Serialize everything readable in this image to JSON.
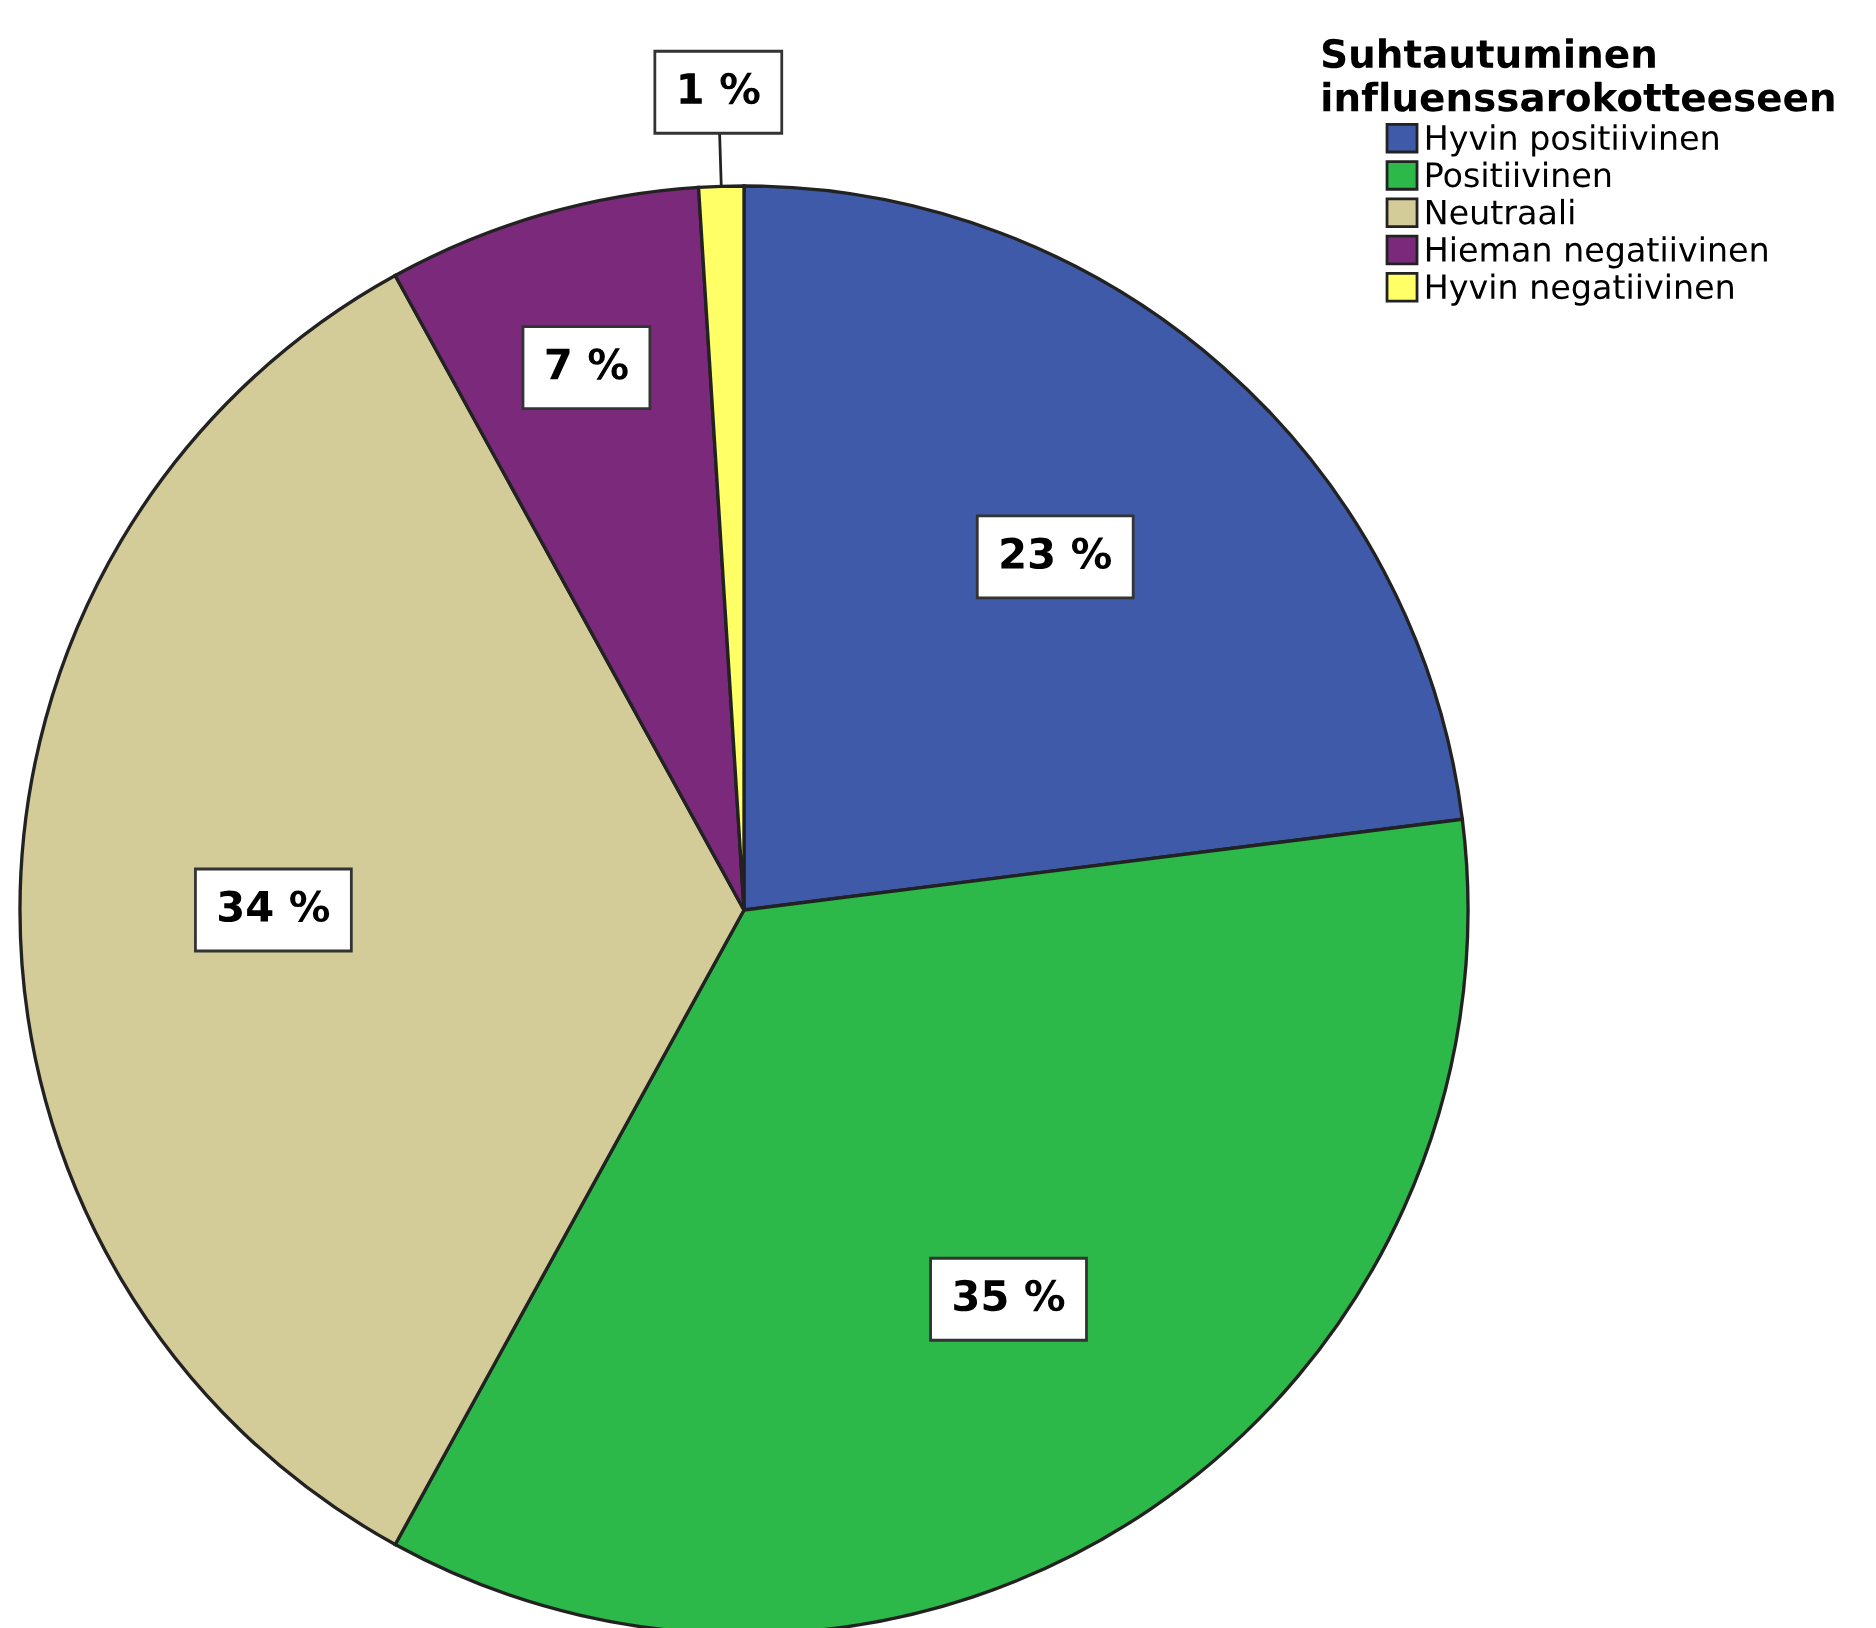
{
  "chart_data": {
    "type": "pie",
    "legend_title": "Suhtautuminen influenssarokotteeseen",
    "categories": [
      "Hyvin positiivinen",
      "Positiivinen",
      "Neutraali",
      "Hieman negatiivinen",
      "Hyvin negatiivinen"
    ],
    "values": [
      23,
      35,
      34,
      7,
      1
    ],
    "colors": [
      "#3f5aa8",
      "#2db84a",
      "#d3cc98",
      "#7b2a7b",
      "#ffff66"
    ],
    "value_labels": [
      "23 %",
      "35 %",
      "34 %",
      "7 %",
      "1 %"
    ],
    "legend": "top right"
  }
}
